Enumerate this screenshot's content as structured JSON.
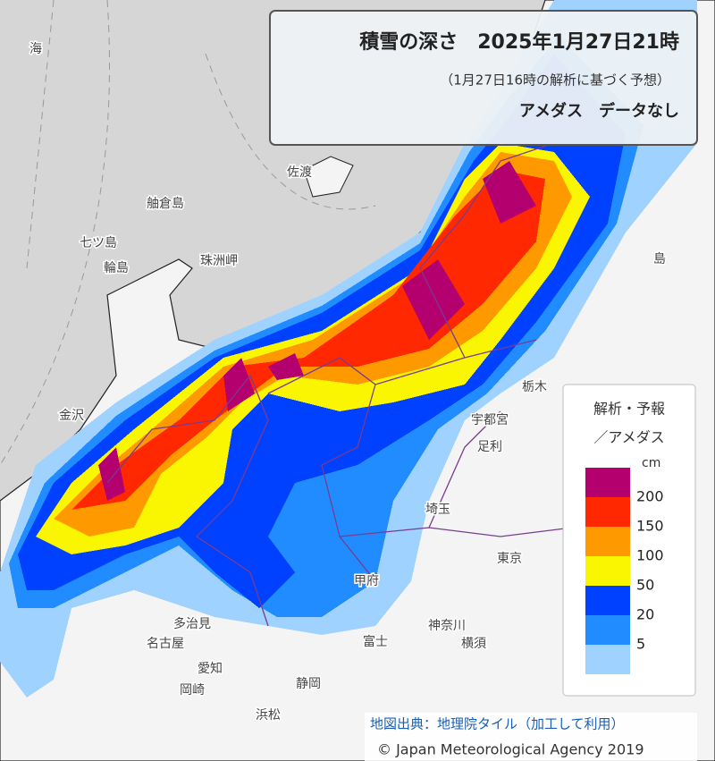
{
  "header": {
    "title": "積雪の深さ　2025年1月27日21時",
    "subtitle": "（1月27日16時の解析に基づく予想）",
    "notice": "アメダス　データなし"
  },
  "legend": {
    "title_lines": [
      "解析・予報",
      "／アメダス"
    ],
    "unit": "cm",
    "levels": [
      200,
      150,
      100,
      50,
      20,
      5
    ],
    "colors": [
      "#b4006e",
      "#ff2800",
      "#ff9900",
      "#faf500",
      "#0041ff",
      "#218cff",
      "#a0d2ff"
    ]
  },
  "places": [
    "海",
    "佐渡",
    "舳倉島",
    "七ツ島",
    "輪島",
    "珠洲岬",
    "金沢",
    "島",
    "栃木",
    "宇都宮",
    "足利",
    "埼玉",
    "東京",
    "神奈川",
    "横須",
    "甲府",
    "富士",
    "静岡",
    "愛知",
    "名古屋",
    "岡崎",
    "多治見",
    "浜松"
  ],
  "attribution": {
    "source": "地図出典：地理院タイル（加工して利用）",
    "copyright": "© Japan Meteorological Agency 2019"
  }
}
